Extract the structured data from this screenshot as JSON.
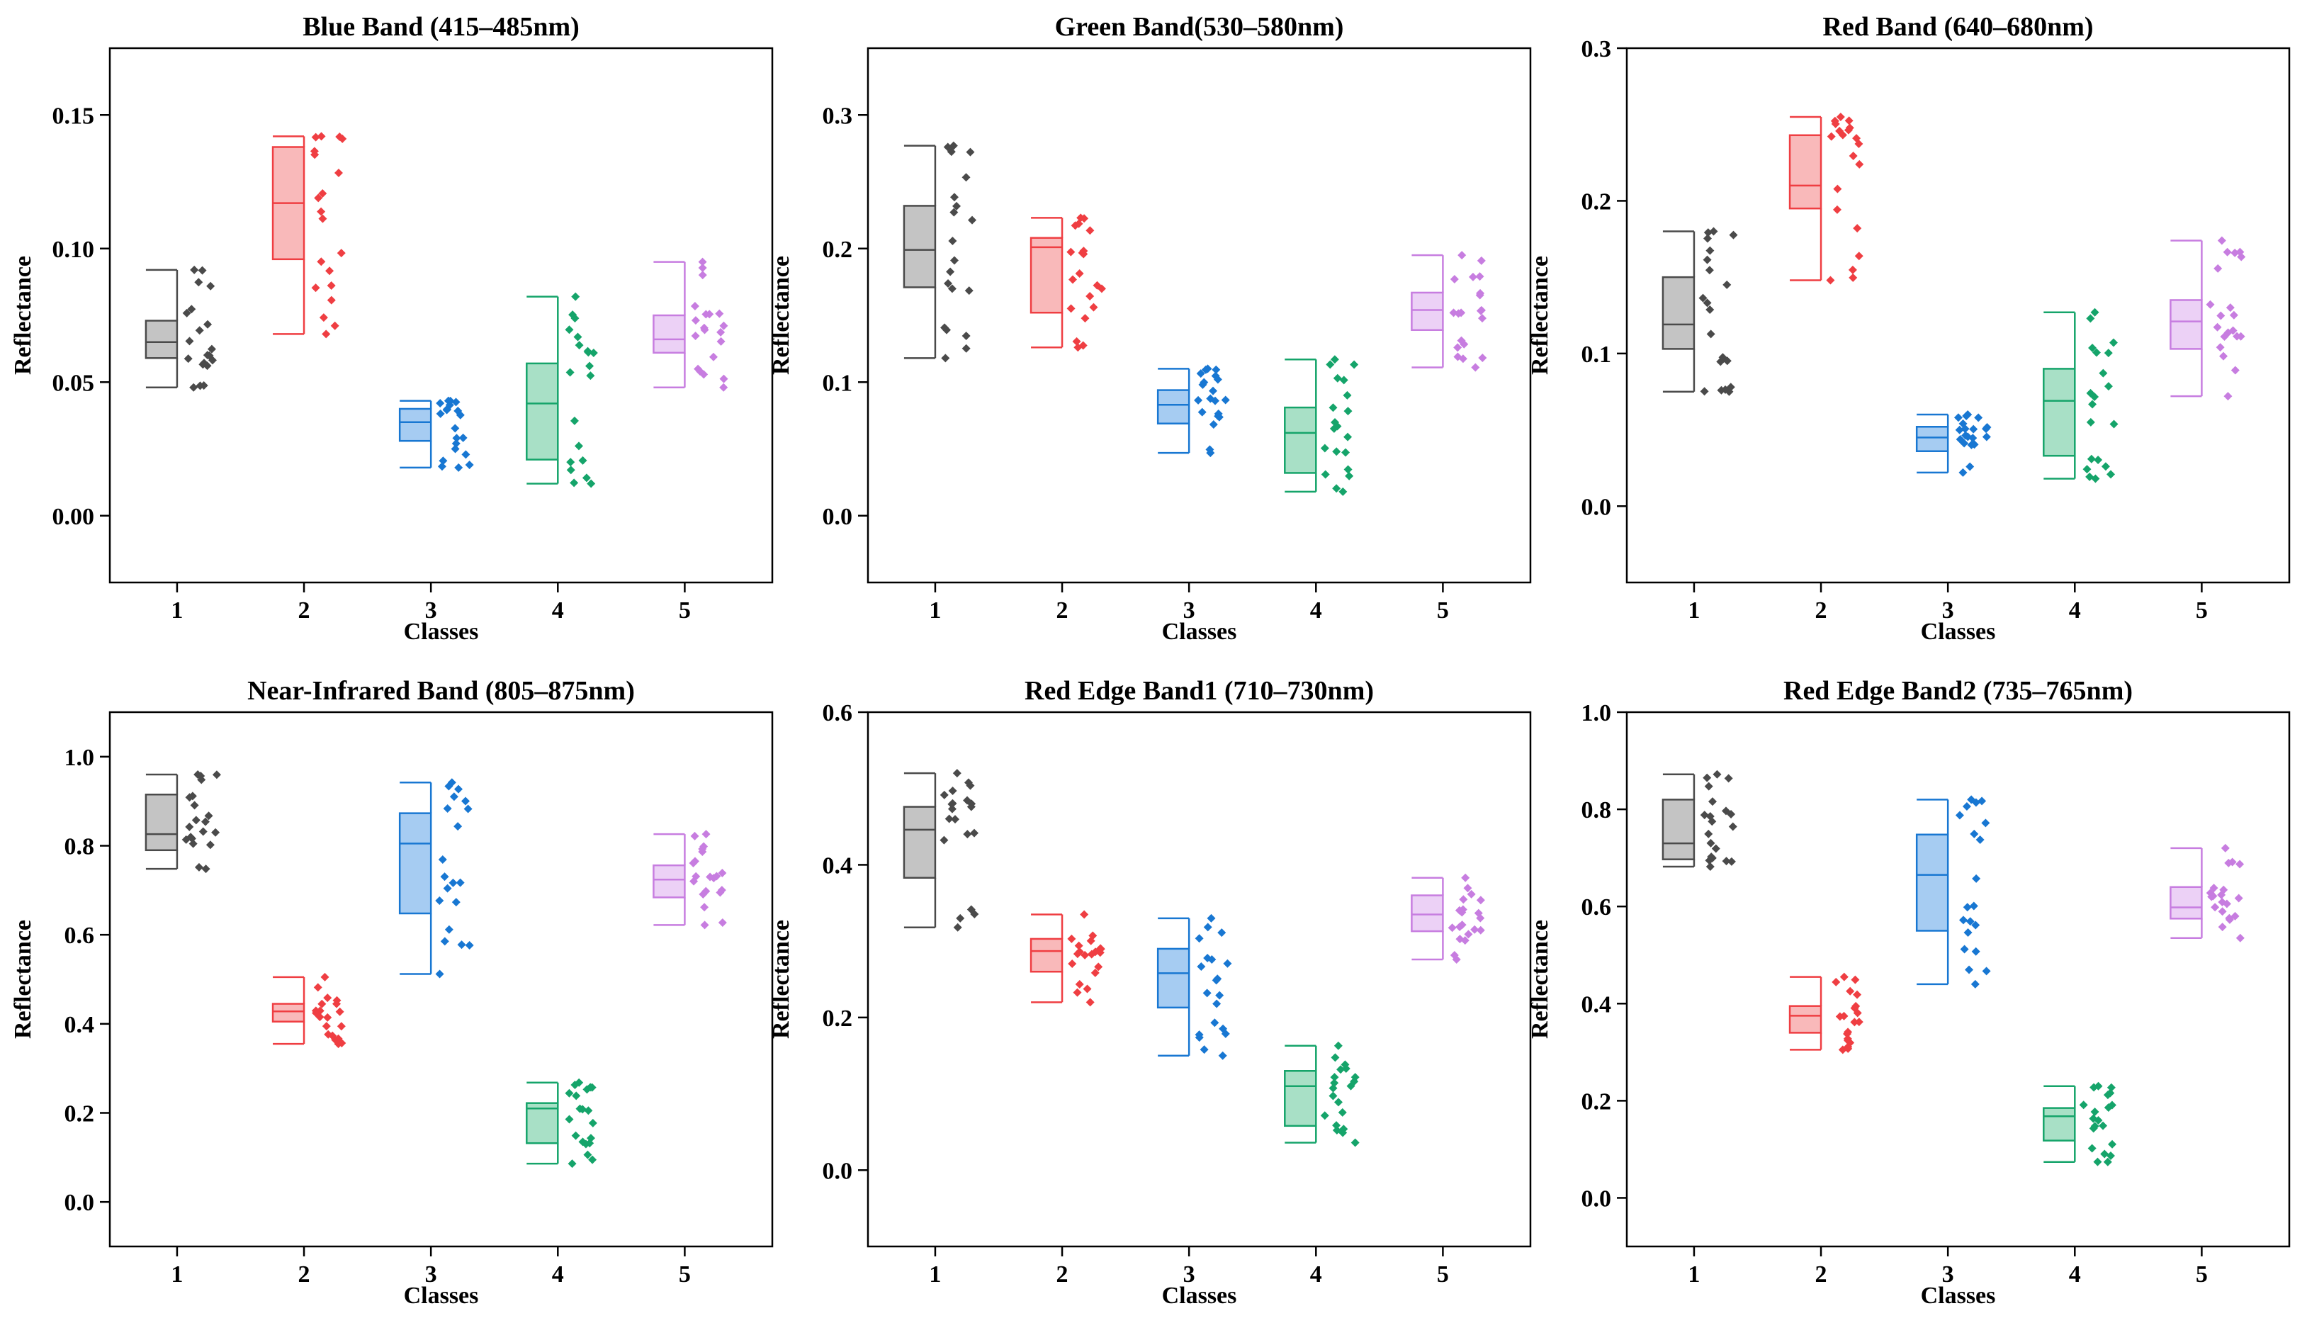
{
  "figure": {
    "xlabel": "Classes",
    "ylabel": "Reflectance"
  },
  "colors": {
    "1": {
      "line": "#4a4a4a",
      "fill": "#c4c4c4"
    },
    "2": {
      "line": "#ef3e42",
      "fill": "#f9b9ba"
    },
    "3": {
      "line": "#1877d2",
      "fill": "#a6ccf2"
    },
    "4": {
      "line": "#15a46a",
      "fill": "#a8e0c6"
    },
    "5": {
      "line": "#c77de0",
      "fill": "#ecd1f6"
    }
  },
  "chart_data": [
    {
      "type": "box",
      "title": "Blue Band (415–485nm)",
      "xlabel": "Classes",
      "ylabel": "Reflectance",
      "categories": [
        "1",
        "2",
        "3",
        "4",
        "5"
      ],
      "ylim": [
        -0.025,
        0.175
      ],
      "yticks": [
        0.0,
        0.05,
        0.1,
        0.15
      ],
      "ytick_labels": [
        "0.00",
        "0.05",
        "0.10",
        "0.15"
      ],
      "boxes": [
        {
          "class": "1",
          "min": 0.048,
          "q1": 0.059,
          "median": 0.065,
          "q3": 0.073,
          "max": 0.092
        },
        {
          "class": "2",
          "min": 0.068,
          "q1": 0.096,
          "median": 0.117,
          "q3": 0.138,
          "max": 0.142
        },
        {
          "class": "3",
          "min": 0.018,
          "q1": 0.028,
          "median": 0.035,
          "q3": 0.04,
          "max": 0.043
        },
        {
          "class": "4",
          "min": 0.012,
          "q1": 0.021,
          "median": 0.042,
          "q3": 0.057,
          "max": 0.082
        },
        {
          "class": "5",
          "min": 0.048,
          "q1": 0.061,
          "median": 0.066,
          "q3": 0.075,
          "max": 0.095
        }
      ]
    },
    {
      "type": "box",
      "title": "Green Band(530–580nm)",
      "xlabel": "Classes",
      "ylabel": "Reflectance",
      "categories": [
        "1",
        "2",
        "3",
        "4",
        "5"
      ],
      "ylim": [
        -0.05,
        0.35
      ],
      "yticks": [
        0.0,
        0.1,
        0.2,
        0.3
      ],
      "ytick_labels": [
        "0.0",
        "0.1",
        "0.2",
        "0.3"
      ],
      "boxes": [
        {
          "class": "1",
          "min": 0.118,
          "q1": 0.171,
          "median": 0.199,
          "q3": 0.232,
          "max": 0.277
        },
        {
          "class": "2",
          "min": 0.126,
          "q1": 0.152,
          "median": 0.201,
          "q3": 0.208,
          "max": 0.223
        },
        {
          "class": "3",
          "min": 0.047,
          "q1": 0.069,
          "median": 0.083,
          "q3": 0.094,
          "max": 0.11
        },
        {
          "class": "4",
          "min": 0.018,
          "q1": 0.032,
          "median": 0.062,
          "q3": 0.081,
          "max": 0.117
        },
        {
          "class": "5",
          "min": 0.111,
          "q1": 0.139,
          "median": 0.154,
          "q3": 0.167,
          "max": 0.195
        }
      ]
    },
    {
      "type": "box",
      "title": "Red Band (640–680nm)",
      "xlabel": "Classes",
      "ylabel": "Reflectance",
      "categories": [
        "1",
        "2",
        "3",
        "4",
        "5"
      ],
      "ylim": [
        -0.05,
        0.3
      ],
      "yticks": [
        0.0,
        0.1,
        0.2,
        0.3
      ],
      "ytick_labels": [
        "0.0",
        "0.1",
        "0.2",
        "0.3"
      ],
      "boxes": [
        {
          "class": "1",
          "min": 0.075,
          "q1": 0.103,
          "median": 0.119,
          "q3": 0.15,
          "max": 0.18
        },
        {
          "class": "2",
          "min": 0.148,
          "q1": 0.195,
          "median": 0.21,
          "q3": 0.243,
          "max": 0.255
        },
        {
          "class": "3",
          "min": 0.022,
          "q1": 0.036,
          "median": 0.045,
          "q3": 0.052,
          "max": 0.06
        },
        {
          "class": "4",
          "min": 0.018,
          "q1": 0.033,
          "median": 0.069,
          "q3": 0.09,
          "max": 0.127
        },
        {
          "class": "5",
          "min": 0.072,
          "q1": 0.103,
          "median": 0.121,
          "q3": 0.135,
          "max": 0.174
        }
      ]
    },
    {
      "type": "box",
      "title": "Near-Infrared Band (805–875nm)",
      "xlabel": "Classes",
      "ylabel": "Reflectance",
      "categories": [
        "1",
        "2",
        "3",
        "4",
        "5"
      ],
      "ylim": [
        -0.1,
        1.1
      ],
      "yticks": [
        0.0,
        0.2,
        0.4,
        0.6,
        0.8,
        1.0
      ],
      "ytick_labels": [
        "0.0",
        "0.2",
        "0.4",
        "0.6",
        "0.8",
        "1.0"
      ],
      "boxes": [
        {
          "class": "1",
          "min": 0.748,
          "q1": 0.79,
          "median": 0.826,
          "q3": 0.915,
          "max": 0.96
        },
        {
          "class": "2",
          "min": 0.355,
          "q1": 0.405,
          "median": 0.428,
          "q3": 0.445,
          "max": 0.505
        },
        {
          "class": "3",
          "min": 0.512,
          "q1": 0.648,
          "median": 0.805,
          "q3": 0.873,
          "max": 0.942
        },
        {
          "class": "4",
          "min": 0.086,
          "q1": 0.132,
          "median": 0.21,
          "q3": 0.222,
          "max": 0.268
        },
        {
          "class": "5",
          "min": 0.622,
          "q1": 0.684,
          "median": 0.724,
          "q3": 0.756,
          "max": 0.826
        }
      ]
    },
    {
      "type": "box",
      "title": "Red Edge Band1 (710–730nm)",
      "xlabel": "Classes",
      "ylabel": "Reflectance",
      "categories": [
        "1",
        "2",
        "3",
        "4",
        "5"
      ],
      "ylim": [
        -0.1,
        0.6
      ],
      "yticks": [
        0.0,
        0.2,
        0.4,
        0.6
      ],
      "ytick_labels": [
        "0.0",
        "0.2",
        "0.4",
        "0.6"
      ],
      "boxes": [
        {
          "class": "1",
          "min": 0.318,
          "q1": 0.383,
          "median": 0.446,
          "q3": 0.476,
          "max": 0.52
        },
        {
          "class": "2",
          "min": 0.22,
          "q1": 0.26,
          "median": 0.287,
          "q3": 0.303,
          "max": 0.335
        },
        {
          "class": "3",
          "min": 0.15,
          "q1": 0.213,
          "median": 0.258,
          "q3": 0.29,
          "max": 0.33
        },
        {
          "class": "4",
          "min": 0.036,
          "q1": 0.058,
          "median": 0.11,
          "q3": 0.13,
          "max": 0.163
        },
        {
          "class": "5",
          "min": 0.276,
          "q1": 0.313,
          "median": 0.335,
          "q3": 0.36,
          "max": 0.383
        }
      ]
    },
    {
      "type": "box",
      "title": "Red Edge Band2 (735–765nm)",
      "xlabel": "Classes",
      "ylabel": "Reflectance",
      "categories": [
        "1",
        "2",
        "3",
        "4",
        "5"
      ],
      "ylim": [
        -0.1,
        1.0
      ],
      "yticks": [
        0.0,
        0.2,
        0.4,
        0.6,
        0.8,
        1.0
      ],
      "ytick_labels": [
        "0.0",
        "0.2",
        "0.4",
        "0.6",
        "0.8",
        "1.0"
      ],
      "boxes": [
        {
          "class": "1",
          "min": 0.682,
          "q1": 0.697,
          "median": 0.73,
          "q3": 0.82,
          "max": 0.872
        },
        {
          "class": "2",
          "min": 0.305,
          "q1": 0.34,
          "median": 0.375,
          "q3": 0.395,
          "max": 0.455
        },
        {
          "class": "3",
          "min": 0.44,
          "q1": 0.55,
          "median": 0.665,
          "q3": 0.748,
          "max": 0.82
        },
        {
          "class": "4",
          "min": 0.074,
          "q1": 0.118,
          "median": 0.168,
          "q3": 0.185,
          "max": 0.23
        },
        {
          "class": "5",
          "min": 0.535,
          "q1": 0.575,
          "median": 0.598,
          "q3": 0.64,
          "max": 0.72
        }
      ]
    }
  ]
}
